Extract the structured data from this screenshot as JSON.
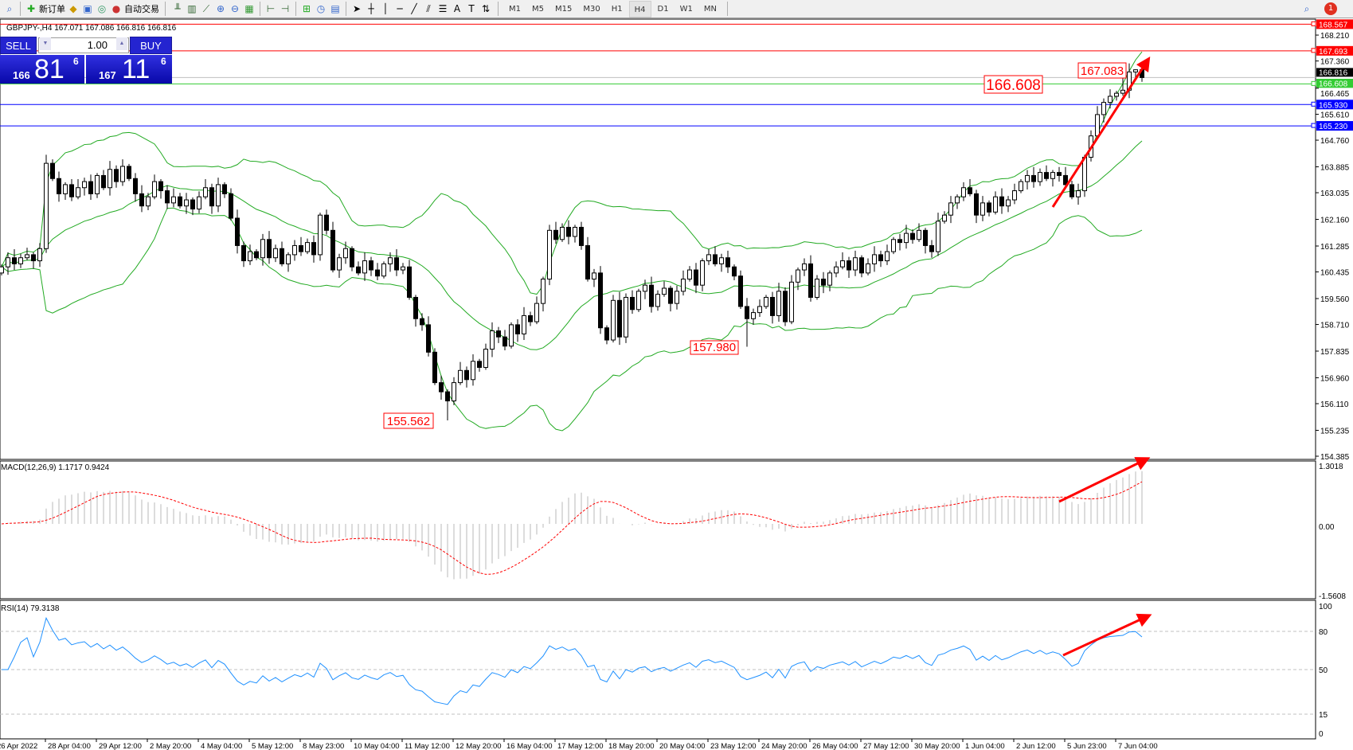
{
  "toolbar": {
    "new_order_label": "新订单",
    "auto_trading_label": "自动交易",
    "icons": [
      "new-order-icon",
      "market-watch-icon",
      "data-window-icon",
      "navigator-icon",
      "signals-icon",
      "auto-trading-icon",
      "bar-chart-icon",
      "candlestick-icon",
      "line-chart-icon",
      "zoom-in-icon",
      "zoom-out-icon",
      "tile-windows-icon",
      "chart-shift-icon",
      "autoscroll-icon",
      "indicators-icon",
      "periods-icon",
      "templates-icon",
      "cursor-icon",
      "crosshair-icon",
      "vertical-line-icon",
      "horizontal-line-icon",
      "trendline-icon",
      "equidistant-channel-icon",
      "fibonacci-icon",
      "text-icon",
      "text-label-icon",
      "arrows-icon",
      "search-icon",
      "notifications-icon"
    ],
    "timeframes": [
      "M1",
      "M5",
      "M15",
      "M30",
      "H1",
      "H4",
      "D1",
      "W1",
      "MN"
    ],
    "active_timeframe": "H4",
    "notification_count": "1"
  },
  "chart": {
    "header": "GBPJPY-,H4  167.071 167.086 166.816 166.816",
    "symbol": "GBPJPY-",
    "timeframe": "H4"
  },
  "trade_panel": {
    "sell_label": "SELL",
    "buy_label": "BUY",
    "volume": "1.00",
    "sell_price": {
      "big": "166",
      "main": "81",
      "pip": "6"
    },
    "buy_price": {
      "big": "167",
      "main": "11",
      "pip": "6"
    }
  },
  "chart_data": {
    "type": "candlestick",
    "price_axis_ticks": [
      "168.210",
      "167.360",
      "166.465",
      "165.610",
      "164.760",
      "163.885",
      "163.035",
      "162.160",
      "161.285",
      "160.435",
      "159.560",
      "158.710",
      "157.835",
      "156.960",
      "156.110",
      "155.235",
      "154.385"
    ],
    "price_range": [
      154.385,
      168.9
    ],
    "date_labels": [
      "26 Apr 2022",
      "28 Apr 04:00",
      "29 Apr 12:00",
      "2 May 20:00",
      "4 May 04:00",
      "5 May 12:00",
      "8 May 23:00",
      "10 May 04:00",
      "11 May 12:00",
      "12 May 20:00",
      "16 May 04:00",
      "17 May 12:00",
      "18 May 20:00",
      "20 May 04:00",
      "23 May 12:00",
      "24 May 20:00",
      "26 May 04:00",
      "27 May 12:00",
      "30 May 20:00",
      "1 Jun 04:00",
      "2 Jun 12:00",
      "5 Jun 23:00",
      "7 Jun 04:00"
    ],
    "closes": [
      160.6,
      160.9,
      160.7,
      160.9,
      161.0,
      160.8,
      161.2,
      164.0,
      163.5,
      163.0,
      163.3,
      162.9,
      163.2,
      163.4,
      163.0,
      163.6,
      163.2,
      163.8,
      163.4,
      163.9,
      163.5,
      163.0,
      162.6,
      162.9,
      163.4,
      163.1,
      162.7,
      162.9,
      162.6,
      162.8,
      162.5,
      162.9,
      163.2,
      162.6,
      163.3,
      163.0,
      162.2,
      161.3,
      160.8,
      161.1,
      160.9,
      161.5,
      160.9,
      161.2,
      160.7,
      161.0,
      161.3,
      161.1,
      161.4,
      161.0,
      162.3,
      161.8,
      160.5,
      160.9,
      161.2,
      160.6,
      160.4,
      160.8,
      160.5,
      160.3,
      160.7,
      160.9,
      160.5,
      160.6,
      159.6,
      158.9,
      158.7,
      157.8,
      156.8,
      156.5,
      156.2,
      156.8,
      157.2,
      156.9,
      157.5,
      157.3,
      157.9,
      158.5,
      158.3,
      158.0,
      158.7,
      158.4,
      159.0,
      158.8,
      159.4,
      160.2,
      161.8,
      161.5,
      161.9,
      161.6,
      161.9,
      161.3,
      160.2,
      160.4,
      158.6,
      158.2,
      159.5,
      158.3,
      159.6,
      159.2,
      159.8,
      160.0,
      159.3,
      159.7,
      159.9,
      159.4,
      159.8,
      160.2,
      160.5,
      160.0,
      160.8,
      161.0,
      160.7,
      160.9,
      160.6,
      160.3,
      159.3,
      158.9,
      159.1,
      159.3,
      159.6,
      159.0,
      159.8,
      158.8,
      160.1,
      160.5,
      160.7,
      159.6,
      160.2,
      160.0,
      160.4,
      160.6,
      160.8,
      160.5,
      160.9,
      160.4,
      160.7,
      161.0,
      160.8,
      161.1,
      161.5,
      161.4,
      161.7,
      161.5,
      161.8,
      161.3,
      161.1,
      162.1,
      162.3,
      162.7,
      162.9,
      163.2,
      163.0,
      162.3,
      162.7,
      162.4,
      162.9,
      162.6,
      162.8,
      163.1,
      163.4,
      163.6,
      163.4,
      163.7,
      163.5,
      163.7,
      163.6,
      163.3,
      162.9,
      163.1,
      164.2,
      164.9,
      165.6,
      166.0,
      166.2,
      166.3,
      166.4,
      167.0,
      167.071,
      166.816
    ],
    "last_bar": {
      "open": "167.071",
      "high": "167.086",
      "low": "166.816",
      "close": "166.816"
    },
    "indicators": {
      "bollinger_bands": {
        "period": 20,
        "deviation": 2,
        "color": "#22aa22"
      },
      "macd": {
        "label": "MACD(12,26,9) 1.1717 0.9424",
        "fast": 12,
        "slow": 26,
        "signal": 9,
        "axis": [
          "1.3018",
          "0.00",
          "-1.5608"
        ],
        "range": [
          -1.5608,
          1.3018
        ]
      },
      "rsi": {
        "label": "RSI(14) 79.3138",
        "period": 14,
        "axis": [
          "100",
          "80",
          "50",
          "15",
          "0"
        ],
        "levels": [
          80,
          50,
          15
        ]
      }
    },
    "horizontal_lines": [
      {
        "price": "168.567",
        "color": "#ff0000"
      },
      {
        "price": "167.693",
        "color": "#ff0000"
      },
      {
        "price": "166.816",
        "color": "#000000",
        "kind": "bid"
      },
      {
        "price": "166.608",
        "color": "#33cc33"
      },
      {
        "price": "165.930",
        "color": "#0000ff"
      },
      {
        "price": "165.230",
        "color": "#0000ff"
      }
    ],
    "price_labels": [
      {
        "text": "166.608",
        "bar": 147
      },
      {
        "text": "167.083",
        "bar": 176
      },
      {
        "text": "157.980",
        "bar": 108
      },
      {
        "text": "155.562",
        "bar": 60
      }
    ],
    "colors": {
      "bull": "#ffffff",
      "bear": "#000000",
      "annotation": "#ff0000",
      "rsi": "#1e90ff",
      "macd_signal": "#ff0000",
      "macd_hist": "#b8b8b8"
    }
  }
}
